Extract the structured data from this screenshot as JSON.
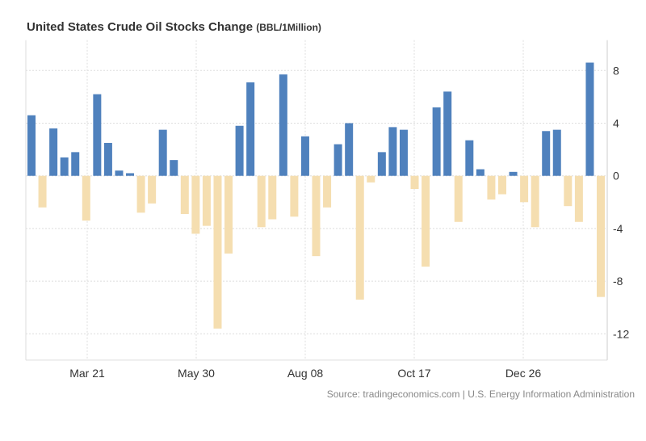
{
  "chart_data": {
    "type": "bar",
    "title": "United States Crude Oil Stocks Change",
    "unit": "(BBL/1Million)",
    "source": "Source: tradingeconomics.com | U.S. Energy Information Administration",
    "xtick_labels": [
      "Mar 21",
      "May 30",
      "Aug 08",
      "Oct 17",
      "Dec 26"
    ],
    "ytick_labels": [
      "8",
      "4",
      "0",
      "-4",
      "-8",
      "-12"
    ],
    "yticks": [
      8,
      4,
      0,
      -4,
      -8,
      -12
    ],
    "ylim": [
      -14,
      10.3
    ],
    "grid": true,
    "colors": {
      "positive": "#4f81bd",
      "negative": "#f5deb0"
    },
    "values": [
      4.6,
      -2.4,
      3.6,
      1.4,
      1.8,
      -3.4,
      6.2,
      2.5,
      0.4,
      0.2,
      -2.8,
      -2.1,
      3.5,
      1.2,
      -2.9,
      -4.4,
      -3.8,
      -11.6,
      -5.9,
      3.8,
      7.1,
      -3.9,
      -3.3,
      7.7,
      -3.1,
      3.0,
      -6.1,
      -2.4,
      2.4,
      4.0,
      -9.4,
      -0.5,
      1.8,
      3.7,
      3.5,
      -1.0,
      -6.9,
      5.2,
      6.4,
      -3.5,
      2.7,
      0.5,
      -1.8,
      -1.4,
      0.3,
      -2.0,
      -3.9,
      3.4,
      3.5,
      -2.3,
      -3.5,
      8.6,
      -9.2
    ]
  }
}
